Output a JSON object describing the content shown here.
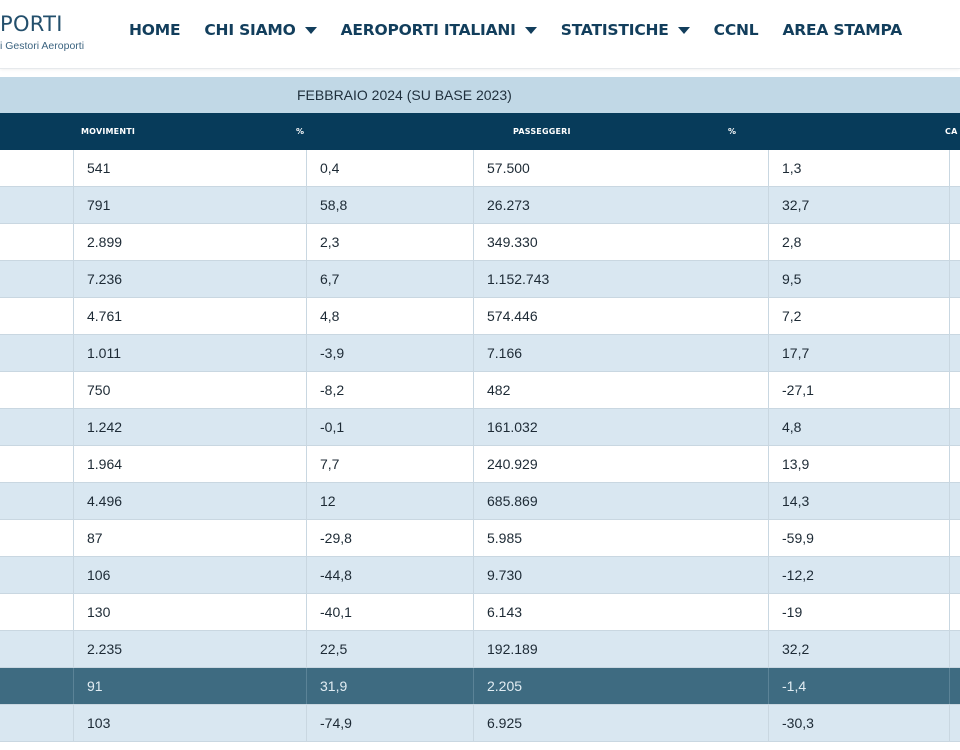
{
  "header": {
    "logo_main": "PORTI",
    "logo_sub": "i Gestori Aeroporti",
    "nav": [
      {
        "label": "HOME",
        "has_dropdown": false,
        "name": "nav-home"
      },
      {
        "label": "CHI SIAMO",
        "has_dropdown": true,
        "name": "nav-chi-siamo"
      },
      {
        "label": "AEROPORTI ITALIANI",
        "has_dropdown": true,
        "name": "nav-aeroporti-italiani"
      },
      {
        "label": "STATISTICHE",
        "has_dropdown": true,
        "name": "nav-statistiche"
      },
      {
        "label": "CCNL",
        "has_dropdown": false,
        "name": "nav-ccnl"
      },
      {
        "label": "AREA STAMPA",
        "has_dropdown": false,
        "name": "nav-area-stampa"
      }
    ]
  },
  "table": {
    "period_title": "FEBBRAIO 2024 (SU BASE 2023)",
    "columns": [
      "MOVIMENTI",
      "%",
      "PASSEGGERI",
      "%",
      "CA"
    ],
    "rows": [
      {
        "movimenti": "541",
        "mov_pct": "0,4",
        "passeggeri": "57.500",
        "pax_pct": "1,3"
      },
      {
        "movimenti": "791",
        "mov_pct": "58,8",
        "passeggeri": "26.273",
        "pax_pct": "32,7"
      },
      {
        "movimenti": "2.899",
        "mov_pct": "2,3",
        "passeggeri": "349.330",
        "pax_pct": "2,8"
      },
      {
        "movimenti": "7.236",
        "mov_pct": "6,7",
        "passeggeri": "1.152.743",
        "pax_pct": "9,5"
      },
      {
        "movimenti": "4.761",
        "mov_pct": "4,8",
        "passeggeri": "574.446",
        "pax_pct": "7,2"
      },
      {
        "movimenti": "1.011",
        "mov_pct": "-3,9",
        "passeggeri": "7.166",
        "pax_pct": "17,7"
      },
      {
        "movimenti": "750",
        "mov_pct": "-8,2",
        "passeggeri": "482",
        "pax_pct": "-27,1"
      },
      {
        "movimenti": "1.242",
        "mov_pct": "-0,1",
        "passeggeri": "161.032",
        "pax_pct": "4,8"
      },
      {
        "movimenti": "1.964",
        "mov_pct": "7,7",
        "passeggeri": "240.929",
        "pax_pct": "13,9"
      },
      {
        "movimenti": "4.496",
        "mov_pct": "12",
        "passeggeri": "685.869",
        "pax_pct": "14,3"
      },
      {
        "movimenti": "87",
        "mov_pct": "-29,8",
        "passeggeri": "5.985",
        "pax_pct": "-59,9"
      },
      {
        "movimenti": "106",
        "mov_pct": "-44,8",
        "passeggeri": "9.730",
        "pax_pct": "-12,2"
      },
      {
        "movimenti": "130",
        "mov_pct": "-40,1",
        "passeggeri": "6.143",
        "pax_pct": "-19"
      },
      {
        "movimenti": "2.235",
        "mov_pct": "22,5",
        "passeggeri": "192.189",
        "pax_pct": "32,2"
      },
      {
        "movimenti": "91",
        "mov_pct": "31,9",
        "passeggeri": "2.205",
        "pax_pct": "-1,4",
        "highlighted": true
      },
      {
        "movimenti": "103",
        "mov_pct": "-74,9",
        "passeggeri": "6.925",
        "pax_pct": "-30,3"
      }
    ]
  },
  "colors": {
    "brand_dark": "#073b5a",
    "nav_text": "#123e5c",
    "month_bar": "#c1d8e6",
    "row_alt": "#d9e7f1",
    "row_highlight": "#3e6b81"
  }
}
